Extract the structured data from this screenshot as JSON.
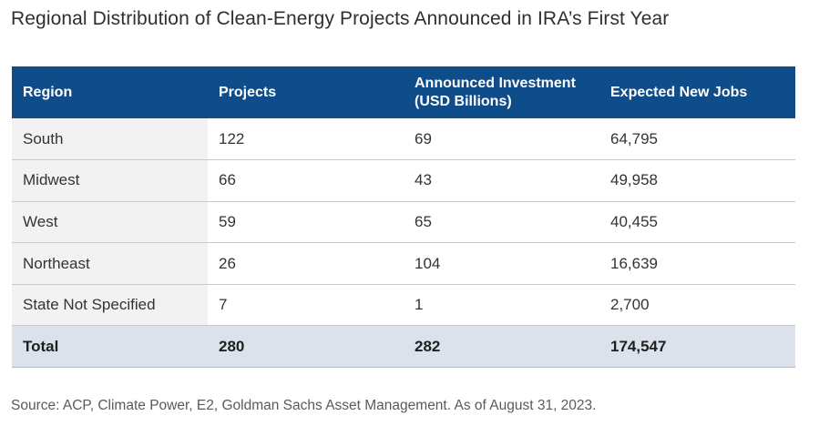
{
  "title": "Regional Distribution of Clean-Energy Projects Announced in IRA’s First Year",
  "table": {
    "headers": {
      "region": "Region",
      "projects": "Projects",
      "investment_line1": "Announced Investment",
      "investment_line2": "(USD Billions)",
      "jobs": "Expected New Jobs"
    },
    "rows": [
      {
        "region": "South",
        "projects": "122",
        "investment": "69",
        "jobs": "64,795"
      },
      {
        "region": "Midwest",
        "projects": "66",
        "investment": "43",
        "jobs": "49,958"
      },
      {
        "region": "West",
        "projects": "59",
        "investment": "65",
        "jobs": "40,455"
      },
      {
        "region": "Northeast",
        "projects": "26",
        "investment": "104",
        "jobs": "16,639"
      },
      {
        "region": "State Not Specified",
        "projects": "7",
        "investment": "1",
        "jobs": "2,700"
      }
    ],
    "total": {
      "region": "Total",
      "projects": "280",
      "investment": "282",
      "jobs": "174,547"
    }
  },
  "source": "Source: ACP, Climate Power, E2, Goldman Sachs Asset Management. As of August 31, 2023.",
  "colors": {
    "header_bg": "#0e4d8a",
    "header_text": "#ffffff",
    "total_bg": "#dbe2ec",
    "region_col_bg": "#f2f2f2"
  }
}
